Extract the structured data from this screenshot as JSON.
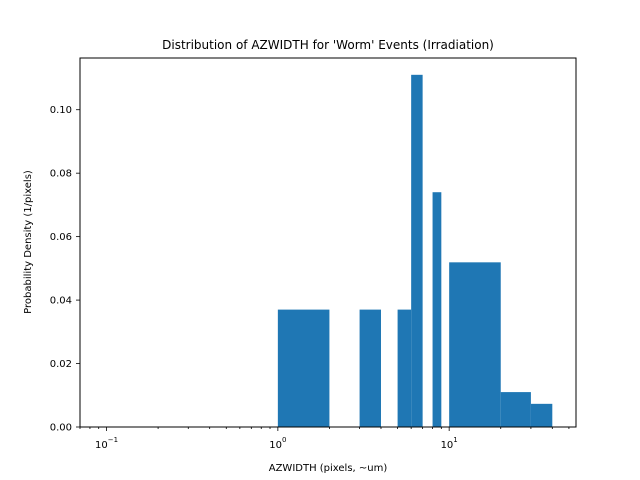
{
  "chart_data": {
    "type": "bar",
    "title": "Distribution of AZWIDTH for 'Worm' Events (Irradiation)",
    "xlabel": "AZWIDTH (pixels, ~um)",
    "ylabel": "Probability Density (1/pixels)",
    "xscale": "log",
    "xlim": [
      0.07,
      55
    ],
    "ylim": [
      0,
      0.1163
    ],
    "grid": false,
    "x_ticks": [
      {
        "value": 0.1,
        "base": "10",
        "exp": "−1"
      },
      {
        "value": 1,
        "base": "10",
        "exp": "0"
      },
      {
        "value": 10,
        "base": "10",
        "exp": "1"
      }
    ],
    "y_ticks": [
      {
        "value": 0.0,
        "label": "0.00"
      },
      {
        "value": 0.02,
        "label": "0.02"
      },
      {
        "value": 0.04,
        "label": "0.04"
      },
      {
        "value": 0.06,
        "label": "0.06"
      },
      {
        "value": 0.08,
        "label": "0.08"
      },
      {
        "value": 0.1,
        "label": "0.10"
      }
    ],
    "bins": [
      {
        "x0": 1.0,
        "x1": 2.0,
        "value": 0.037
      },
      {
        "x0": 3.0,
        "x1": 4.0,
        "value": 0.037
      },
      {
        "x0": 5.0,
        "x1": 6.0,
        "value": 0.037
      },
      {
        "x0": 6.0,
        "x1": 7.0,
        "value": 0.111
      },
      {
        "x0": 8.0,
        "x1": 9.0,
        "value": 0.074
      },
      {
        "x0": 10.0,
        "x1": 20.0,
        "value": 0.0519
      },
      {
        "x0": 20.0,
        "x1": 30.0,
        "value": 0.011
      },
      {
        "x0": 30.0,
        "x1": 40.0,
        "value": 0.0073
      }
    ],
    "bar_color": "#1f77b4"
  }
}
